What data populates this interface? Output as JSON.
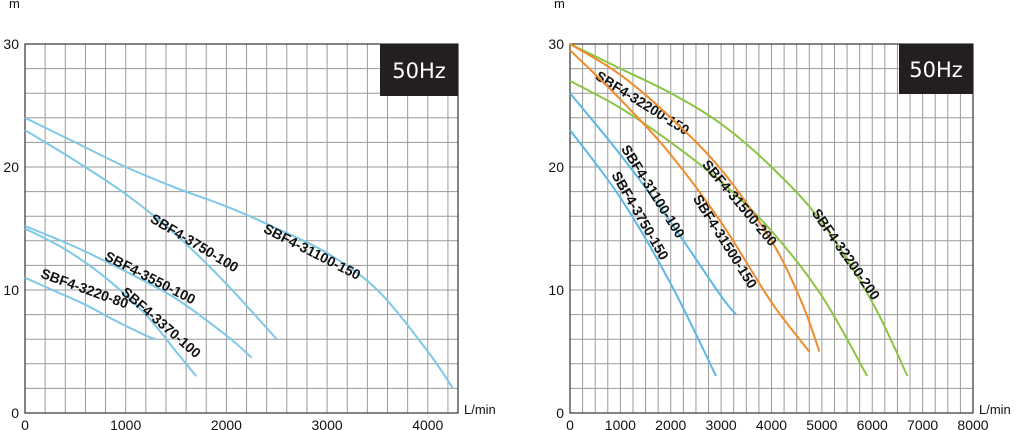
{
  "chart_data": [
    {
      "type": "line",
      "badge": "50Hz",
      "xlabel": "L/min",
      "ylabel": "m",
      "xlim": [
        0,
        4300
      ],
      "ylim": [
        0,
        30
      ],
      "xticks": [
        "0",
        "1000",
        "2000",
        "3000",
        "4000"
      ],
      "yticks": [
        "0",
        "10",
        "20",
        "30"
      ],
      "grid": true,
      "color": "#7ec8e8",
      "series": [
        {
          "name": "SBF4-31100-150",
          "x": [
            0,
            500,
            1000,
            1500,
            2000,
            2500,
            3000,
            3500,
            4000,
            4250
          ],
          "y": [
            24,
            22,
            20,
            18.3,
            16.8,
            15,
            13,
            10,
            5,
            2
          ]
        },
        {
          "name": "SBF4-3750-100",
          "x": [
            0,
            500,
            1000,
            1500,
            2000,
            2500
          ],
          "y": [
            23,
            20.5,
            17.8,
            14.5,
            10.5,
            6
          ]
        },
        {
          "name": "SBF4-3550-100",
          "x": [
            0,
            500,
            1000,
            1500,
            2000,
            2250
          ],
          "y": [
            15.2,
            13.5,
            11.5,
            9.3,
            6.3,
            4.5
          ]
        },
        {
          "name": "SBF4-3370-100",
          "x": [
            0,
            400,
            800,
            1200,
            1500,
            1700
          ],
          "y": [
            15,
            13.3,
            11,
            8,
            5,
            3
          ]
        },
        {
          "name": "SBF4-3220-80",
          "x": [
            0,
            300,
            600,
            900,
            1200,
            1300
          ],
          "y": [
            11,
            9.9,
            8.8,
            7.5,
            6.3,
            6
          ]
        }
      ]
    },
    {
      "type": "line",
      "badge": "50Hz",
      "xlabel": "L/min",
      "ylabel": "m",
      "xlim": [
        0,
        8000
      ],
      "ylim": [
        0,
        30
      ],
      "xticks": [
        "0",
        "1000",
        "2000",
        "3000",
        "4000",
        "5000",
        "6000",
        "7000",
        "8000"
      ],
      "yticks": [
        "0",
        "10",
        "20",
        "30"
      ],
      "grid": true,
      "series": [
        {
          "name": "SBF4-32200-200",
          "color": "#8cc444",
          "x": [
            0,
            1000,
            2000,
            3000,
            4000,
            5000,
            6000,
            6700
          ],
          "y": [
            30,
            28,
            26,
            23.5,
            20,
            15.5,
            9,
            3
          ]
        },
        {
          "name": "SBF4-32200-150",
          "color": "#8cc444",
          "x": [
            0,
            1000,
            2000,
            3000,
            4000,
            5000,
            5900
          ],
          "y": [
            27,
            24.8,
            22,
            18.8,
            14.8,
            9.5,
            3
          ]
        },
        {
          "name": "SBF4-31500-200",
          "color": "#ef8c2c",
          "x": [
            0,
            1000,
            2000,
            3000,
            4000,
            4600,
            4950
          ],
          "y": [
            30,
            27.5,
            24,
            19.8,
            14,
            9,
            5
          ]
        },
        {
          "name": "SBF4-31500-150",
          "color": "#ef8c2c",
          "x": [
            0,
            1000,
            2000,
            3000,
            4000,
            4750
          ],
          "y": [
            29.5,
            25.5,
            21,
            15.5,
            9,
            5
          ]
        },
        {
          "name": "SBF4-31100-100",
          "color": "#5cb8e4",
          "x": [
            0,
            1000,
            2000,
            3000,
            3300
          ],
          "y": [
            26,
            21,
            15.5,
            9.5,
            8
          ]
        },
        {
          "name": "SBF4-3750-150",
          "color": "#5cb8e4",
          "x": [
            0,
            1000,
            2000,
            2900
          ],
          "y": [
            23,
            17.5,
            10.5,
            3
          ]
        }
      ]
    }
  ]
}
